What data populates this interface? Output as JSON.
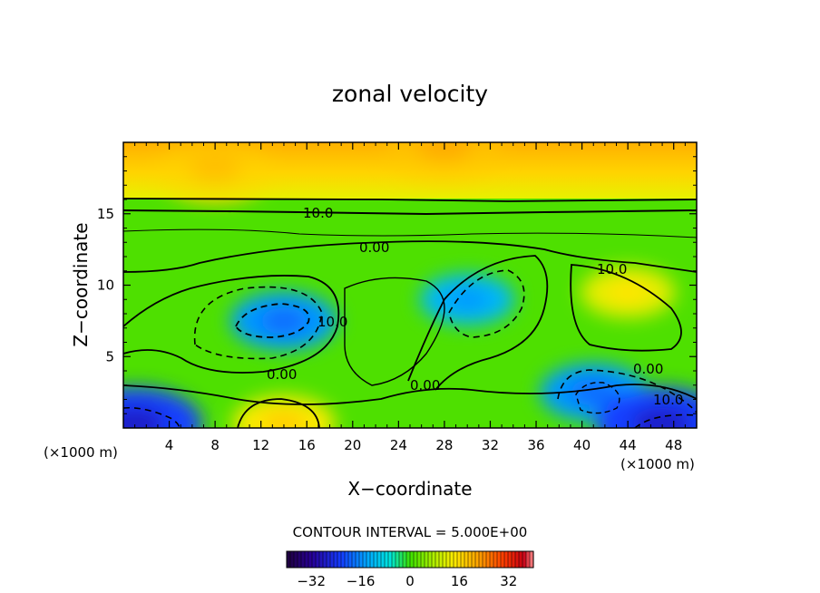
{
  "chart_data": {
    "type": "heatmap",
    "title": "zonal velocity",
    "xlabel": "X−coordinate",
    "ylabel": "Z−coordinate",
    "xlim": [
      0,
      50
    ],
    "ylim": [
      0,
      20
    ],
    "x_ticks": [
      4,
      8,
      12,
      16,
      20,
      24,
      28,
      32,
      36,
      40,
      44,
      48
    ],
    "y_ticks": [
      5,
      10,
      15
    ],
    "x_unit": "(×1000 m)",
    "y_unit": "(×1000 m)",
    "contour_interval_text": "CONTOUR INTERVAL = 5.000E+00",
    "contour_labels": [
      "10.0",
      "0.00",
      "10.0",
      "10.0",
      "0.00",
      "0.00",
      "0.00",
      "10.0"
    ],
    "colorbar": {
      "min": -40,
      "max": 40,
      "ticks": [
        -32,
        -16,
        0,
        16,
        32
      ],
      "tick_labels": [
        "−32",
        "−16",
        "0",
        "16",
        "32"
      ]
    },
    "field_features": [
      {
        "x": 14,
        "z": 7.5,
        "value": -15
      },
      {
        "x": 30,
        "z": 9,
        "value": -12
      },
      {
        "x": 41,
        "z": 2.5,
        "value": -15
      },
      {
        "x": 47,
        "z": 0.3,
        "value": -22
      },
      {
        "x": 1,
        "z": 0.3,
        "value": -22
      },
      {
        "x": 14,
        "z": 0.3,
        "value": 14
      },
      {
        "x": 44,
        "z": 9.5,
        "value": 12
      },
      {
        "x": 28,
        "z": 19.5,
        "value": 18
      },
      {
        "x": 8,
        "z": 18,
        "value": 17
      }
    ]
  }
}
